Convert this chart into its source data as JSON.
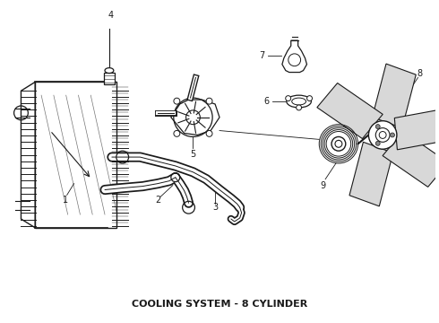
{
  "title": "COOLING SYSTEM - 8 CYLINDER",
  "title_fontsize": 8,
  "title_fontweight": "bold",
  "bg_color": "#ffffff",
  "line_color": "#1a1a1a",
  "figsize": [
    4.9,
    3.6
  ],
  "dpi": 100
}
